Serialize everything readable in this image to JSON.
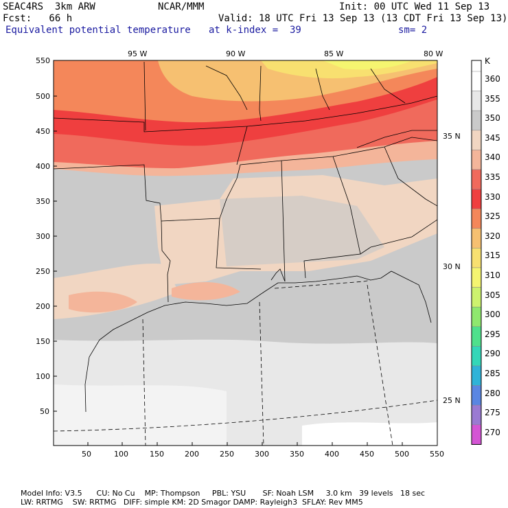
{
  "header": {
    "model": "SEAC4RS  3km ARW",
    "org": "NCAR/MMM",
    "init": "Init: 00 UTC Wed 11 Sep 13",
    "fcst": "Fcst:   66 h",
    "valid": "Valid: 18 UTC Fri 13 Sep 13 (13 CDT Fri 13 Sep 13)",
    "field": "Equivalent potential temperature",
    "level": "at k-index =  39",
    "smooth": "sm= 2"
  },
  "axes": {
    "x_ticks": [
      "50",
      "100",
      "150",
      "200",
      "250",
      "300",
      "350",
      "400",
      "450",
      "500",
      "550"
    ],
    "y_ticks": [
      "550",
      "500",
      "450",
      "400",
      "350",
      "300",
      "250",
      "200",
      "150",
      "100",
      "50"
    ],
    "lon_labels": [
      "95 W",
      "90 W",
      "85 W",
      "80 W"
    ],
    "lat_labels": [
      "35 N",
      "30 N",
      "25 N"
    ]
  },
  "colorbar": {
    "unit": "K",
    "levels": [
      "360",
      "355",
      "350",
      "345",
      "340",
      "335",
      "330",
      "325",
      "320",
      "315",
      "310",
      "305",
      "300",
      "295",
      "290",
      "285",
      "280",
      "275",
      "270"
    ],
    "colors": {
      "360": "#ffffff",
      "355": "#e8e8e8",
      "350": "#cacaca",
      "345": "#f1d6c2",
      "340": "#f4b59a",
      "335": "#f06a5c",
      "330": "#ef3f3f",
      "325": "#f4875a",
      "320": "#f6c071",
      "315": "#f8e070",
      "310": "#f5f570",
      "305": "#cdf26e",
      "300": "#8fe86e",
      "295": "#4fe08c",
      "290": "#33d7b8",
      "285": "#2fb3d8",
      "280": "#5a86e2",
      "275": "#9a7ad2",
      "270": "#d455d4"
    }
  },
  "footer": {
    "line1": "Model Info: V3.5      CU: No Cu    MP: Thompson     PBL: YSU       SF: Noah LSM     3.0 km   39 levels   18 sec",
    "line2": "LW: RRTMG    SW: RRTMG   DIFF: simple KM: 2D Smagor DAMP: Rayleigh3  SFLAY: Rev MM5"
  }
}
